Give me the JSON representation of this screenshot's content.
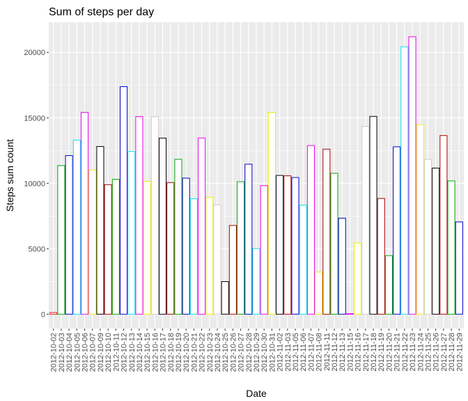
{
  "chart_data": {
    "type": "bar",
    "title": "Sum of steps per day",
    "xlabel": "Date",
    "ylabel": "Steps sum count",
    "ylim": [
      -1100,
      22300
    ],
    "yticks": [
      0,
      5000,
      10000,
      15000,
      20000
    ],
    "ytick_labels": [
      "0",
      "5000",
      "10000",
      "15000",
      "20000"
    ],
    "grid": true,
    "legend": "none",
    "background": "#ebebeb",
    "gridline_color": "#ffffff",
    "bar_fill": "#ffffff",
    "categories": [
      "2012-10-02",
      "2012-10-03",
      "2012-10-04",
      "2012-10-05",
      "2012-10-06",
      "2012-10-07",
      "2012-10-09",
      "2012-10-10",
      "2012-10-11",
      "2012-10-12",
      "2012-10-13",
      "2012-10-14",
      "2012-10-15",
      "2012-10-16",
      "2012-10-17",
      "2012-10-18",
      "2012-10-19",
      "2012-10-20",
      "2012-10-21",
      "2012-10-22",
      "2012-10-23",
      "2012-10-24",
      "2012-10-25",
      "2012-10-26",
      "2012-10-27",
      "2012-10-28",
      "2012-10-29",
      "2012-10-30",
      "2012-10-31",
      "2012-11-02",
      "2012-11-03",
      "2012-11-05",
      "2012-11-06",
      "2012-11-07",
      "2012-11-08",
      "2012-11-11",
      "2012-11-12",
      "2012-11-13",
      "2012-11-15",
      "2012-11-16",
      "2012-11-17",
      "2012-11-18",
      "2012-11-19",
      "2012-11-20",
      "2012-11-21",
      "2012-11-22",
      "2012-11-23",
      "2012-11-24",
      "2012-11-25",
      "2012-11-26",
      "2012-11-27",
      "2012-11-28",
      "2012-11-29"
    ],
    "values": [
      126,
      11352,
      12116,
      13294,
      15420,
      11015,
      12811,
      9900,
      10304,
      17382,
      12426,
      15098,
      10139,
      15084,
      13452,
      10056,
      11829,
      10395,
      8821,
      13460,
      8918,
      8355,
      2492,
      6778,
      10119,
      11458,
      5018,
      9819,
      15414,
      10600,
      10571,
      10439,
      8334,
      12883,
      3219,
      12608,
      10765,
      7336,
      41,
      5441,
      14339,
      15110,
      8841,
      4472,
      12787,
      20427,
      21194,
      14478,
      11834,
      11162,
      13646,
      10183,
      7047
    ],
    "colors": [
      "#e41a1c",
      "#00aa00",
      "#0000cc",
      "#00e5ee",
      "#ee00ee",
      "#eeee00",
      "#000000",
      "#aa0000",
      "#00aa00",
      "#0000cc",
      "#00e5ee",
      "#ee00ee",
      "#eeee00",
      "#cccccc",
      "#000000",
      "#aa0000",
      "#00aa00",
      "#0000cc",
      "#00e5ee",
      "#ee00ee",
      "#eeee00",
      "#cccccc",
      "#000000",
      "#aa0000",
      "#00aa00",
      "#0000cc",
      "#00e5ee",
      "#ee00ee",
      "#eeee00",
      "#000000",
      "#aa0000",
      "#0000cc",
      "#00e5ee",
      "#ee00ee",
      "#eeee00",
      "#aa0000",
      "#00aa00",
      "#0000cc",
      "#ee00ee",
      "#eeee00",
      "#cccccc",
      "#000000",
      "#aa0000",
      "#00aa00",
      "#0000cc",
      "#00e5ee",
      "#ee00ee",
      "#eeee00",
      "#cccccc",
      "#000000",
      "#aa0000",
      "#00aa00",
      "#0000cc"
    ]
  }
}
